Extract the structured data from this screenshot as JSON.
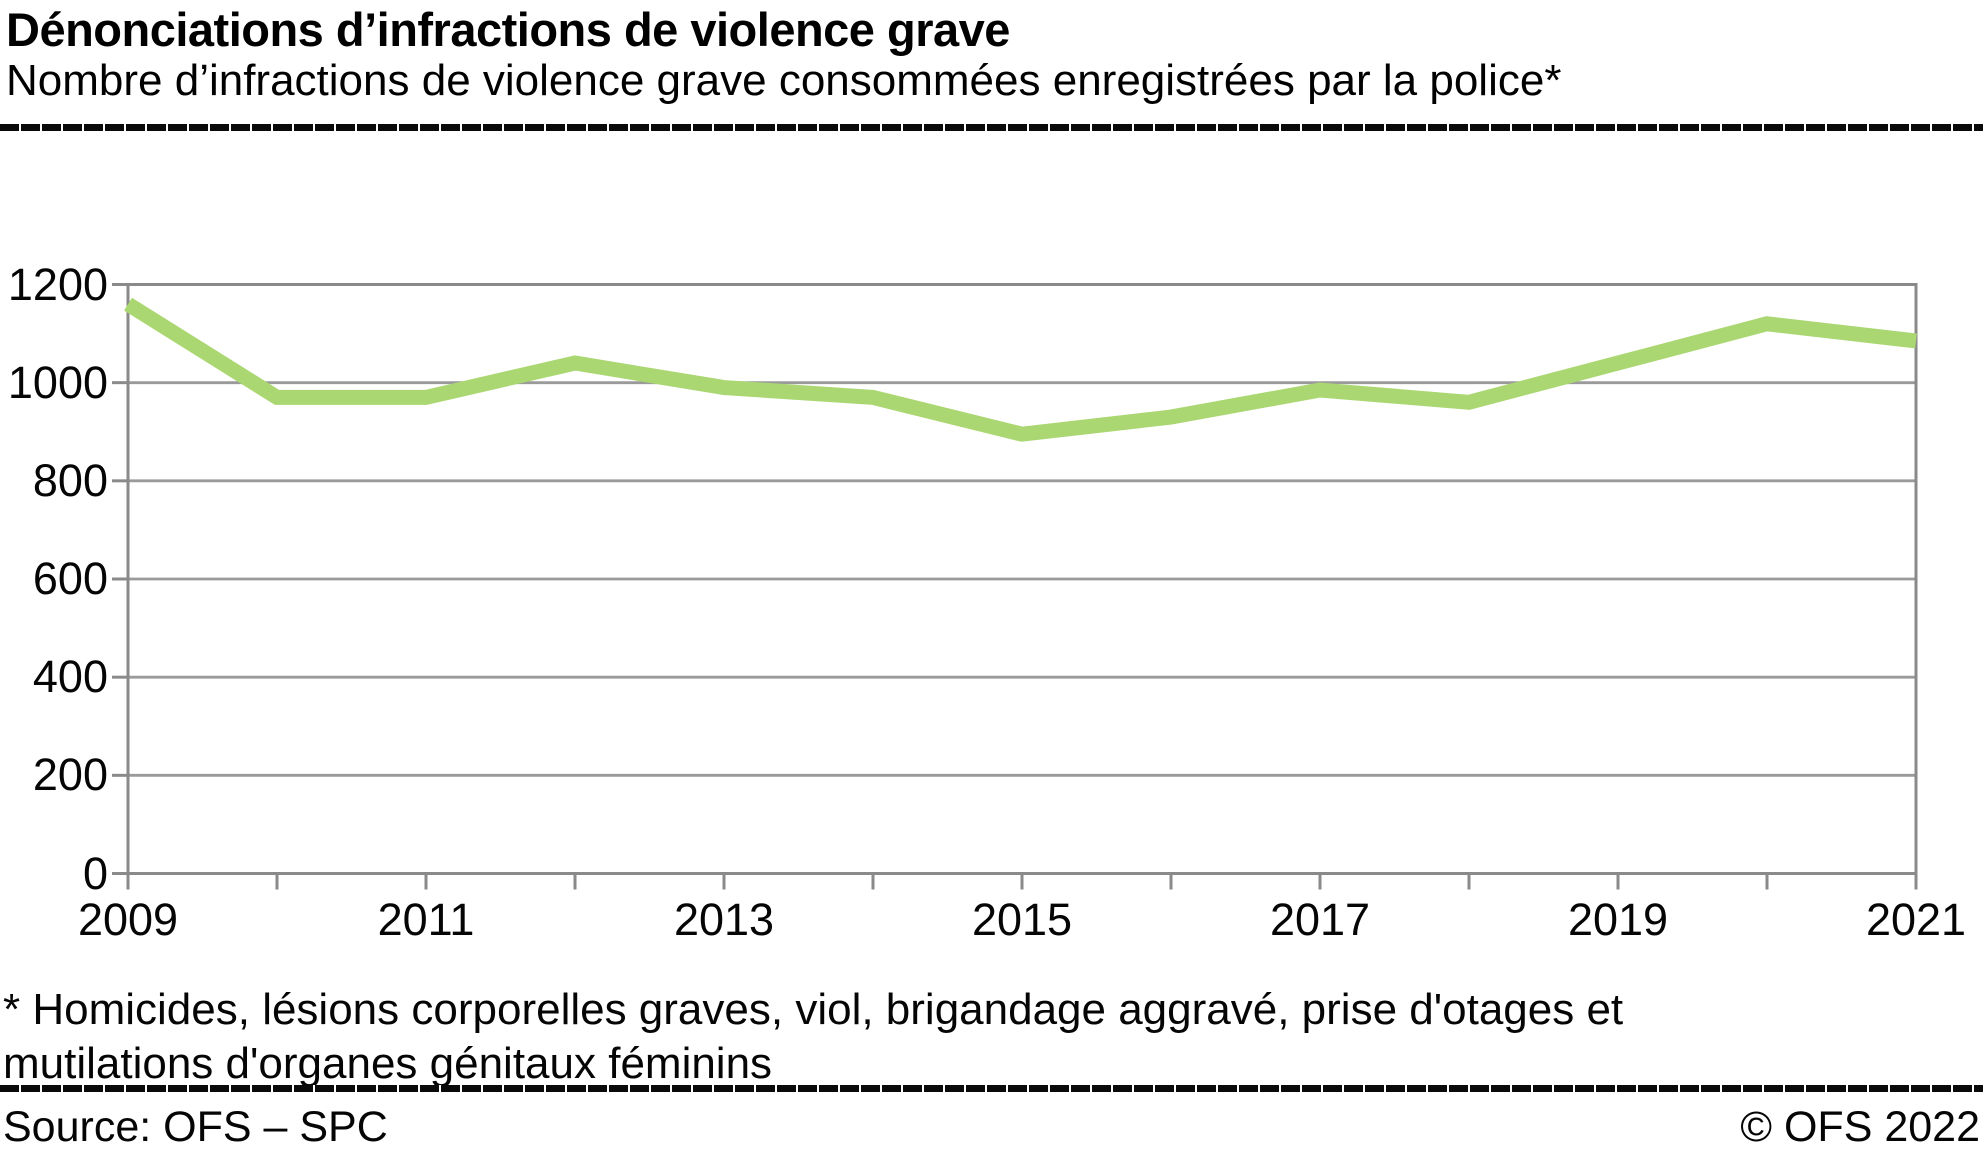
{
  "header": {
    "title": "Dénonciations d’infractions de violence grave",
    "subtitle": "Nombre d’infractions de violence grave consommées enregistrées par la police*"
  },
  "footnote": {
    "line1": "* Homicides, lésions corporelles graves, viol, brigandage aggravé, prise d'otages et",
    "line2": "mutilations d'organes génitaux féminins"
  },
  "footer": {
    "source": "Source: OFS – SPC",
    "copyright": "© OFS 2022"
  },
  "colors": {
    "line": "#abd772",
    "grid": "#9a9a9a",
    "axis": "#8a8a8a",
    "text": "#050505"
  },
  "chart_data": {
    "type": "line",
    "title": "Dénonciations d’infractions de violence grave",
    "subtitle": "Nombre d’infractions de violence grave consommées enregistrées par la police*",
    "x": [
      2009,
      2010,
      2011,
      2012,
      2013,
      2014,
      2015,
      2016,
      2017,
      2018,
      2019,
      2020,
      2021
    ],
    "series": [
      {
        "name": "Infractions de violence grave consommées enregistrées par la police",
        "values": [
          1160,
          970,
          970,
          1040,
          990,
          970,
          895,
          930,
          985,
          960,
          1040,
          1120,
          1085
        ]
      }
    ],
    "ylim": [
      0,
      1200
    ],
    "ytick_step": 200,
    "y_tick_labels": [
      "0",
      "200",
      "400",
      "600",
      "800",
      "1000",
      "1200"
    ],
    "xtick_labels": [
      "2009",
      "2011",
      "2013",
      "2015",
      "2017",
      "2019",
      "2021"
    ],
    "grid": true,
    "legend": false,
    "line_color": "#abd772"
  }
}
